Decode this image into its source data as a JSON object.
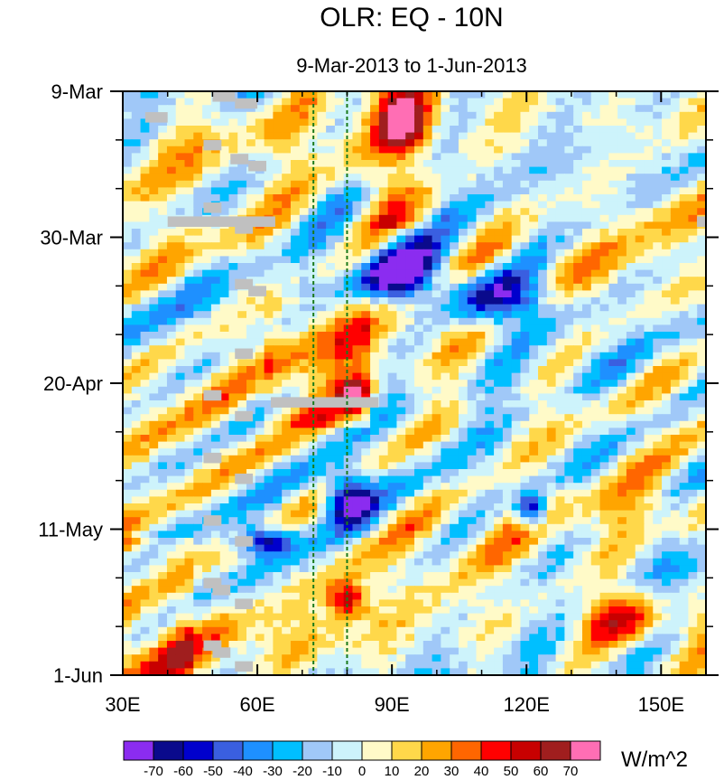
{
  "chart_data": {
    "type": "heatmap",
    "title": "OLR: EQ - 10N",
    "subtitle": "9-Mar-2013 to 1-Jun-2013",
    "x_axis": {
      "label": "",
      "range": [
        30,
        160
      ],
      "ticks": [
        {
          "value": 30,
          "label": "30E"
        },
        {
          "value": 60,
          "label": "60E"
        },
        {
          "value": 90,
          "label": "90E"
        },
        {
          "value": 120,
          "label": "120E"
        },
        {
          "value": 150,
          "label": "150E"
        }
      ]
    },
    "y_axis": {
      "label": "",
      "range_days": [
        0,
        84
      ],
      "direction": "time increases downward",
      "ticks": [
        {
          "value": 0,
          "label": "9-Mar"
        },
        {
          "value": 21,
          "label": "30-Mar"
        },
        {
          "value": 42,
          "label": "20-Apr"
        },
        {
          "value": 63,
          "label": "11-May"
        },
        {
          "value": 84,
          "label": "1-Jun"
        }
      ]
    },
    "reference_lines": [
      {
        "x": 72.5,
        "style": "dashed",
        "color": "#1a7a1a"
      },
      {
        "x": 80,
        "style": "dashed",
        "color": "#1a7a1a"
      }
    ],
    "colorbar": {
      "units": "W/m^2",
      "labels": [
        "-70",
        "-60",
        "-50",
        "-40",
        "-30",
        "-20",
        "-10",
        "0",
        "10",
        "20",
        "30",
        "40",
        "50",
        "60",
        "70"
      ],
      "colors": [
        "#8b2cf0",
        "#0a0a8c",
        "#0000cd",
        "#3a5fe0",
        "#1e90ff",
        "#00bfff",
        "#a0c8f8",
        "#cdf3fb",
        "#fffac8",
        "#ffd84a",
        "#ffa500",
        "#ff6600",
        "#ff0000",
        "#c80000",
        "#a01e1e",
        "#ff6eb4"
      ]
    },
    "missing_color": "#c0c0c0",
    "features": [
      {
        "description": "strong negative anomaly",
        "lon": [
          83,
          100
        ],
        "day": [
          22,
          30
        ],
        "value": -75
      },
      {
        "description": "negative anomaly band",
        "lon": [
          103,
          127
        ],
        "day": [
          26,
          34
        ],
        "value": -70
      },
      {
        "description": "negative anomaly",
        "lon": [
          75,
          85
        ],
        "day": [
          55,
          62
        ],
        "value": -75
      },
      {
        "description": "negative anomaly",
        "lon": [
          55,
          68
        ],
        "day": [
          63,
          67
        ],
        "value": -70
      },
      {
        "description": "negative anomaly",
        "lon": [
          118,
          125
        ],
        "day": [
          58,
          63
        ],
        "value": -75
      },
      {
        "description": "positive anomaly",
        "lon": [
          88,
          98
        ],
        "day": [
          0,
          8
        ],
        "value": 55
      },
      {
        "description": "positive anomaly",
        "lon": [
          78,
          85
        ],
        "day": [
          41,
          47
        ],
        "value": 50
      },
      {
        "description": "positive anomaly",
        "lon": [
          76,
          84
        ],
        "day": [
          71,
          76
        ],
        "value": 55
      },
      {
        "description": "positive anomaly",
        "lon": [
          133,
          150
        ],
        "day": [
          72,
          80
        ],
        "value": 50
      }
    ]
  }
}
